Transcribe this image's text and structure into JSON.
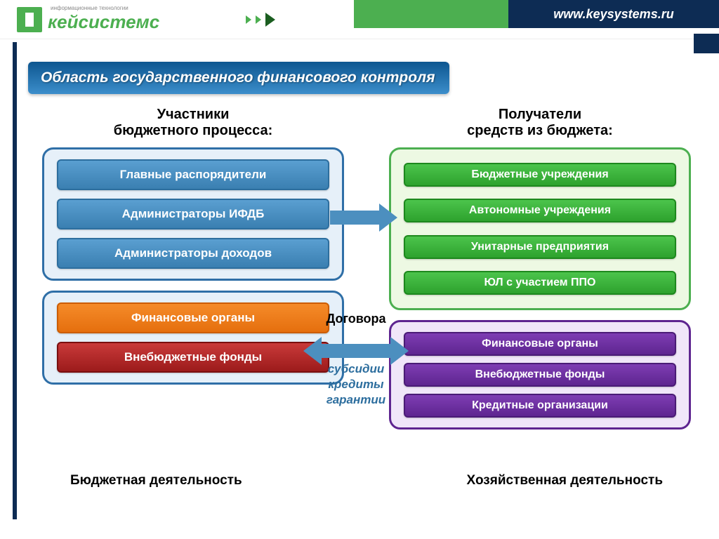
{
  "header": {
    "logo_text": "кейсистемс",
    "logo_sub": "информационные технологии",
    "url": "www.keysystems.ru"
  },
  "title": "Область государственного финансового контроля",
  "left": {
    "title": "Участники\nбюджетного процесса:",
    "panel1": {
      "items": [
        "Главные распорядители",
        "Администраторы ИФДБ",
        "Администраторы доходов"
      ],
      "border_color": "#2f6fa7",
      "bg_color": "#e6f0f9",
      "item_color": "blue"
    },
    "panel2": {
      "items": [
        "Финансовые органы",
        "Внебюджетные фонды"
      ],
      "border_color": "#2f6fa7",
      "colors": [
        "orange",
        "red"
      ]
    },
    "footer": "Бюджетная деятельность"
  },
  "right": {
    "title": "Получатели\nсредств из бюджета:",
    "panel1": {
      "items": [
        "Бюджетные учреждения",
        "Автономные учреждения",
        "Унитарные предприятия",
        "ЮЛ с участием ППО"
      ],
      "border_color": "#4caf50",
      "item_color": "green"
    },
    "panel2": {
      "items": [
        "Финансовые органы",
        "Внебюджетные фонды",
        "Кредитные организации"
      ],
      "border_color": "#5e2590",
      "item_color": "purple"
    },
    "footer": "Хозяйственная деятельность"
  },
  "middle": {
    "top_label": "Договора",
    "bottom_labels": [
      "субсидии",
      "кредиты",
      "гарантии"
    ]
  },
  "colors": {
    "brand_green": "#4caf50",
    "brand_dark": "#0d2c54",
    "arrow": "#4c8fbf"
  }
}
